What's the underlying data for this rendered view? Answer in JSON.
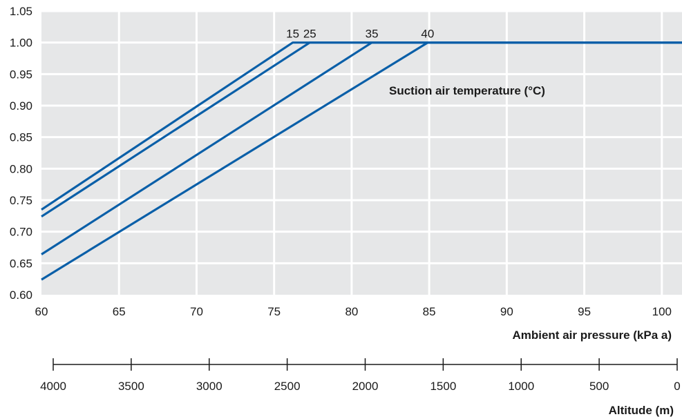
{
  "chart_data": {
    "type": "line",
    "xlabel": "Ambient air pressure (kPa a)",
    "ylabel": "",
    "xlim": [
      60,
      101.3
    ],
    "ylim": [
      0.6,
      1.05
    ],
    "x_ticks": [
      60,
      65,
      70,
      75,
      80,
      85,
      90,
      95,
      100
    ],
    "y_ticks": [
      "0.60",
      "0.65",
      "0.70",
      "0.75",
      "0.80",
      "0.85",
      "0.90",
      "0.95",
      "1.00",
      "1.05"
    ],
    "grid": true,
    "annotation": "Suction air temperature (°C)",
    "series": [
      {
        "name": "15",
        "points": [
          [
            60,
            0.735
          ],
          [
            76.2,
            1.0
          ],
          [
            101.3,
            1.0
          ]
        ]
      },
      {
        "name": "25",
        "points": [
          [
            60,
            0.724
          ],
          [
            77.3,
            1.0
          ],
          [
            101.3,
            1.0
          ]
        ]
      },
      {
        "name": "35",
        "points": [
          [
            60,
            0.664
          ],
          [
            81.3,
            1.0
          ],
          [
            101.3,
            1.0
          ]
        ]
      },
      {
        "name": "40",
        "points": [
          [
            60,
            0.624
          ],
          [
            84.9,
            1.0
          ],
          [
            101.3,
            1.0
          ]
        ]
      }
    ],
    "secondary_axis": {
      "label": "Altitude (m)",
      "ticks": [
        "4000",
        "3500",
        "3000",
        "2500",
        "2000",
        "1500",
        "1000",
        "500",
        "0"
      ]
    }
  },
  "colors": {
    "plot_background": "#e6e7e8",
    "grid": "#ffffff",
    "line": "#0a5fa8",
    "axis": "#1a1a1a"
  }
}
